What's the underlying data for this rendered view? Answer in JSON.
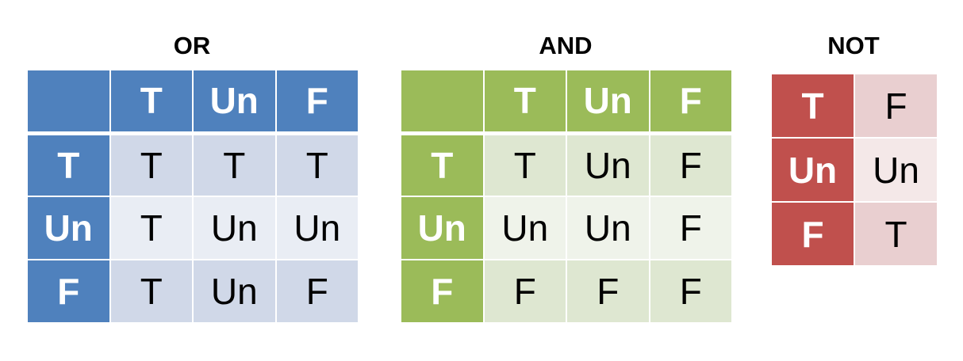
{
  "tables": {
    "or": {
      "title": "OR",
      "header": [
        "",
        "T",
        "Un",
        "F"
      ],
      "rows": [
        [
          "T",
          "T",
          "T",
          "T"
        ],
        [
          "Un",
          "T",
          "Un",
          "Un"
        ],
        [
          "F",
          "T",
          "Un",
          "F"
        ]
      ]
    },
    "and": {
      "title": "AND",
      "header": [
        "",
        "T",
        "Un",
        "F"
      ],
      "rows": [
        [
          "T",
          "T",
          "Un",
          "F"
        ],
        [
          "Un",
          "Un",
          "Un",
          "F"
        ],
        [
          "F",
          "F",
          "F",
          "F"
        ]
      ]
    },
    "not": {
      "title": "NOT",
      "rows": [
        [
          "T",
          "F"
        ],
        [
          "Un",
          "Un"
        ],
        [
          "F",
          "T"
        ]
      ]
    }
  },
  "colors": {
    "or_header": "#4f81bd",
    "or_cell_band_1": "#d0d8e8",
    "or_cell_band_2": "#e9edf4",
    "and_header": "#9bbb59",
    "and_cell_band_1": "#dee7d1",
    "and_cell_band_2": "#eff3ea",
    "not_header": "#c0504d",
    "not_cell_band_1": "#e9cfd0",
    "not_cell_band_2": "#f4e8e8"
  }
}
